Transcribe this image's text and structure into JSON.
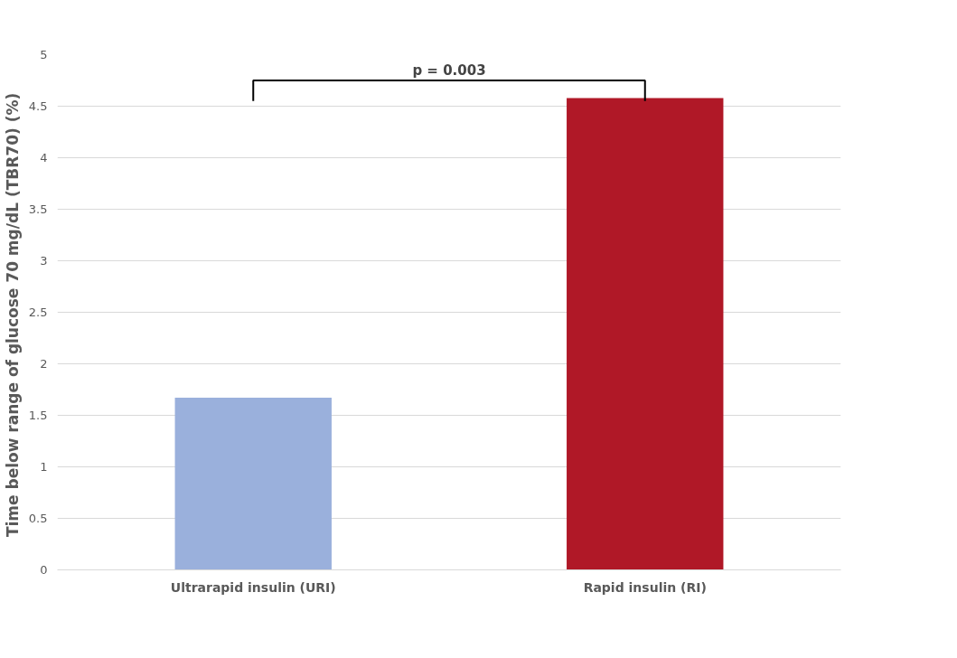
{
  "chart_data": {
    "type": "bar",
    "categories": [
      "Ultrarapid insulin (URI)",
      "Rapid insulin (RI)"
    ],
    "values": [
      1.67,
      4.58
    ],
    "colors": [
      "#9ab0dc",
      "#b01827"
    ],
    "ylabel": "Time below range of glucose 70 mg/dL (TBR70)  (%)",
    "ylim": [
      0,
      5
    ],
    "yticks": [
      0,
      0.5,
      1,
      1.5,
      2,
      2.5,
      3,
      3.5,
      4,
      4.5,
      5
    ],
    "grid": "y",
    "annotations": [
      "p = 0.003"
    ]
  }
}
